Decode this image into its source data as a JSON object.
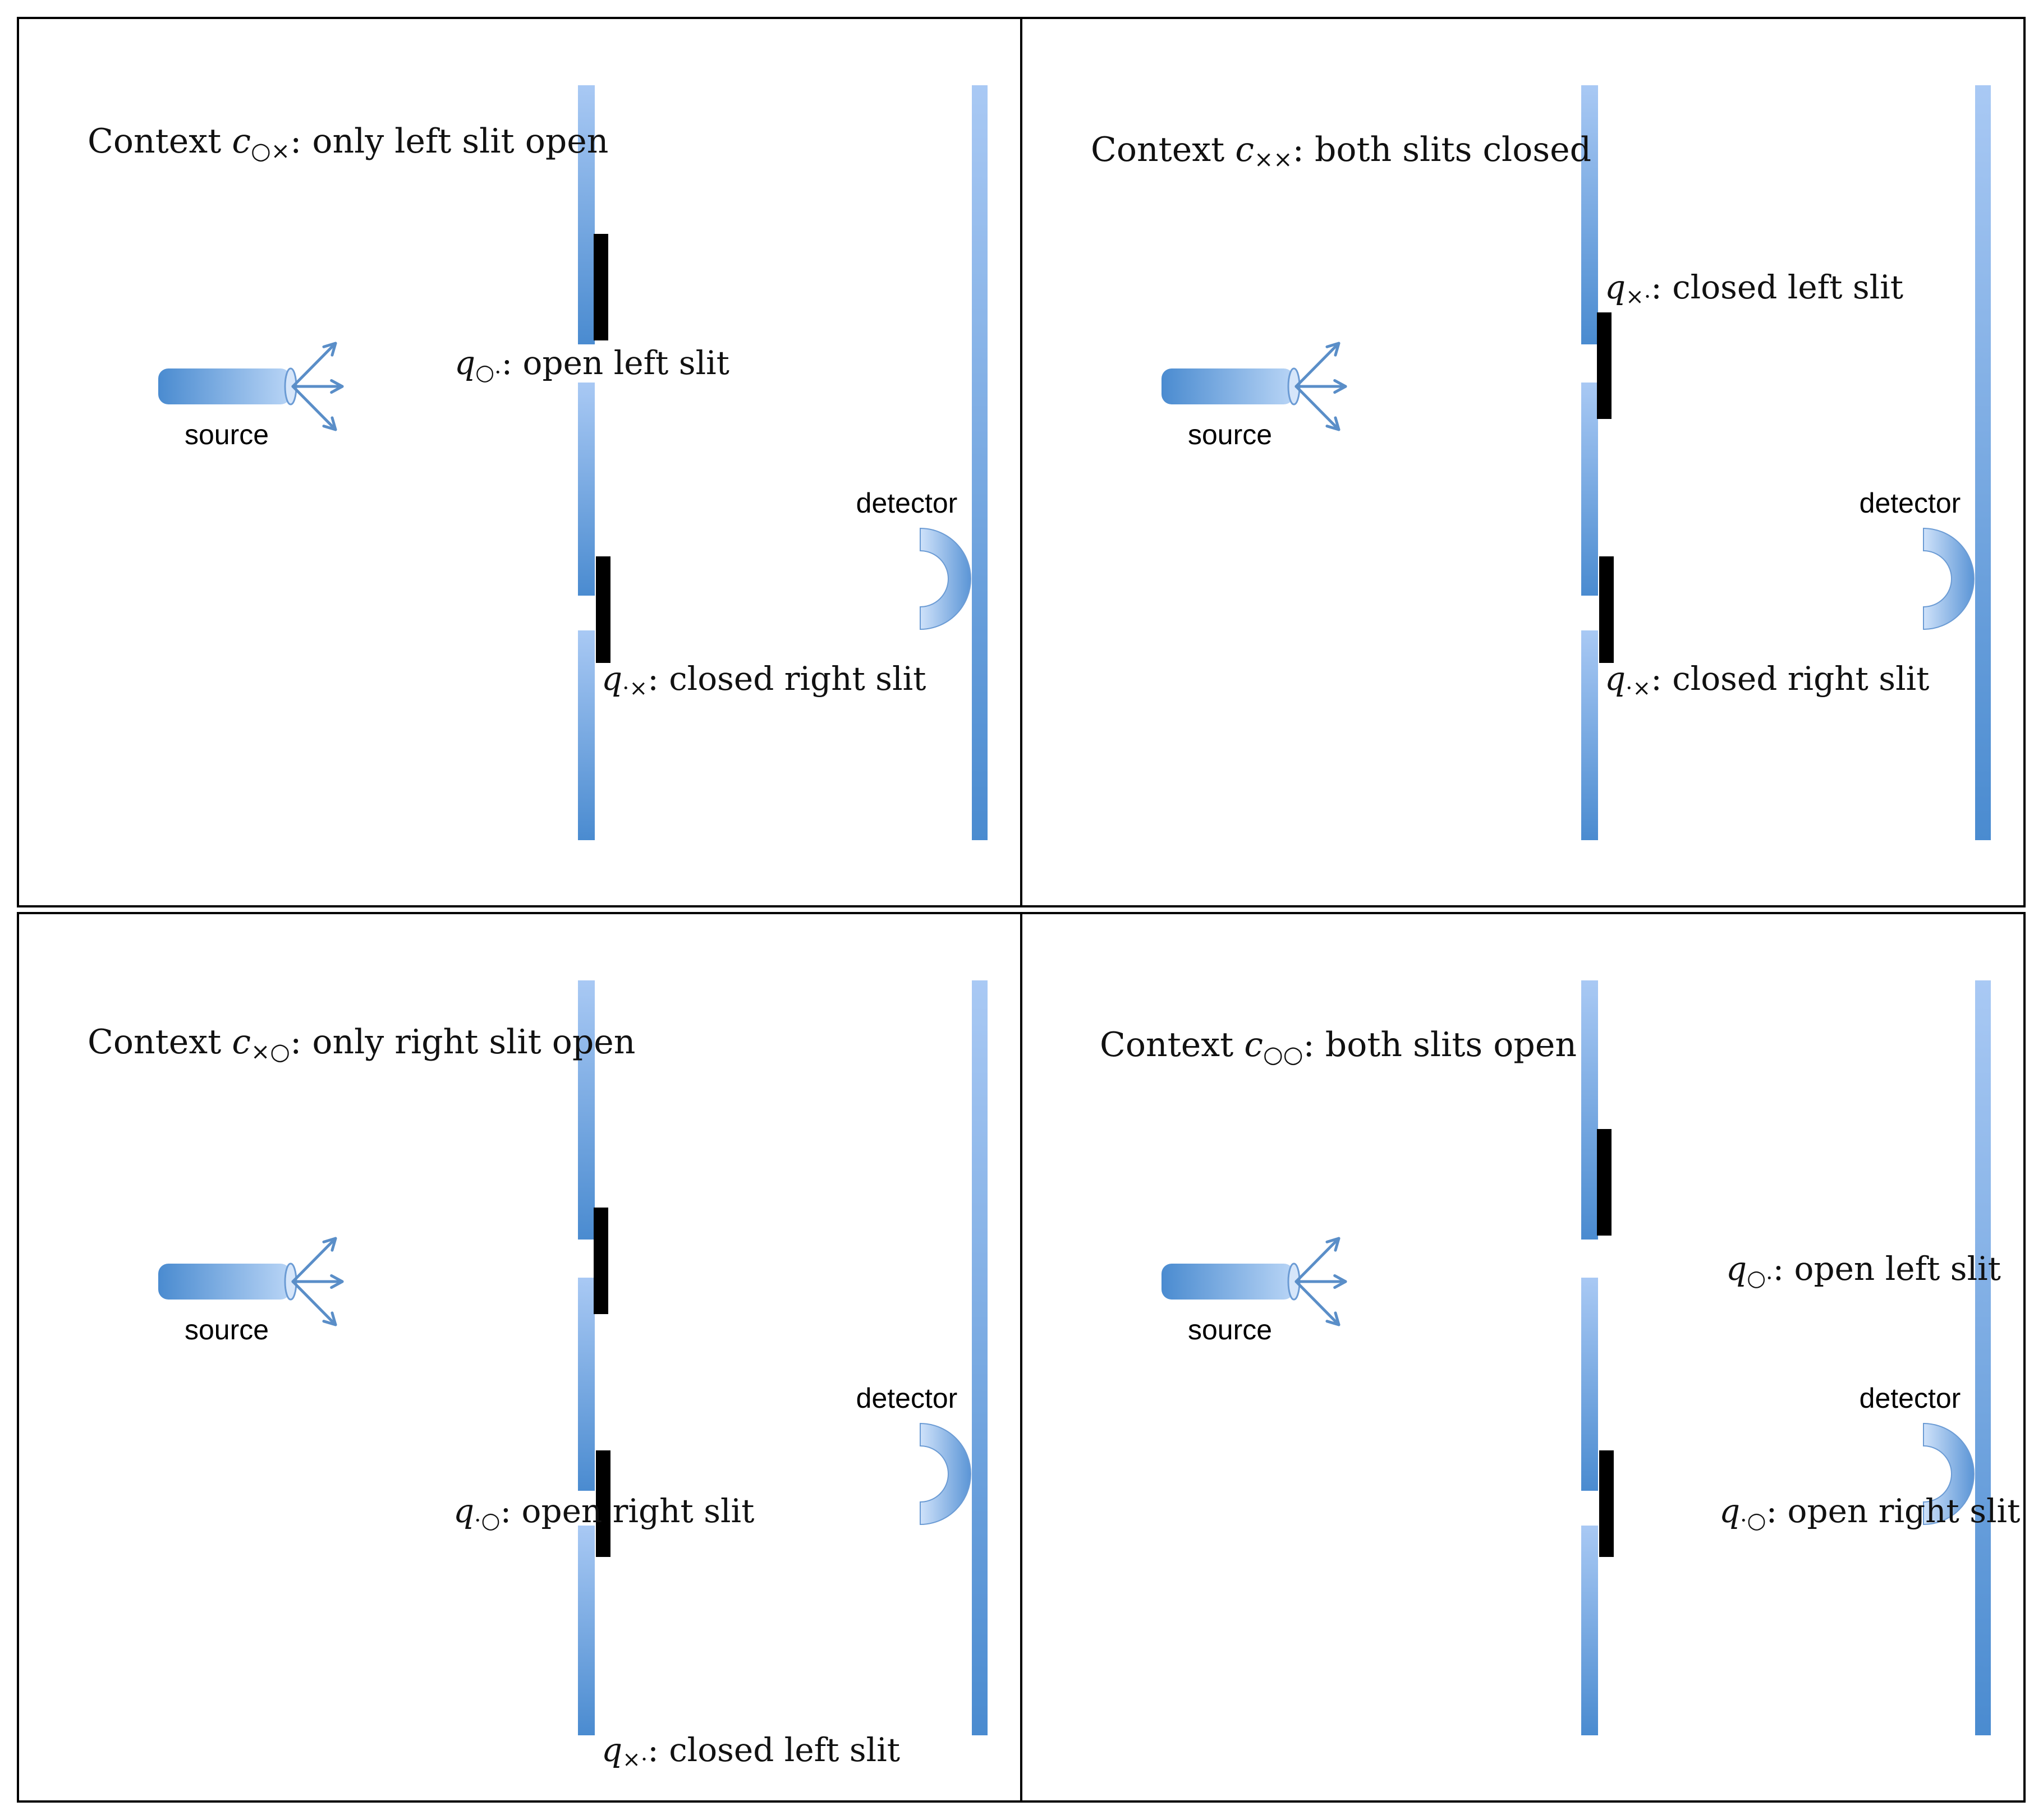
{
  "colors": {
    "frame": "#000000",
    "barrier_light": "#a9c9f4",
    "barrier_dark": "#4a8bd0",
    "shutter": "#000000",
    "arrow": "#5a8ec8"
  },
  "panels": [
    {
      "position": "top-left",
      "context": {
        "prefix": "Context",
        "symbol": "c",
        "subscript": "○×",
        "suffix": ": only left slit open"
      },
      "source_label": "source",
      "detector_label": "detector",
      "slit_labels": [
        {
          "symbol": "q",
          "subscript": "○·",
          "suffix": ": open left slit"
        },
        {
          "symbol": "q",
          "subscript": "·×",
          "suffix": ": closed right slit"
        }
      ],
      "left_slit": "open",
      "right_slit": "closed"
    },
    {
      "position": "top-right",
      "context": {
        "prefix": "Context",
        "symbol": "c",
        "subscript": "××",
        "suffix": ": both slits closed"
      },
      "source_label": "source",
      "detector_label": "detector",
      "slit_labels": [
        {
          "symbol": "q",
          "subscript": "×·",
          "suffix": ": closed left slit"
        },
        {
          "symbol": "q",
          "subscript": "·×",
          "suffix": ": closed right slit"
        }
      ],
      "left_slit": "closed",
      "right_slit": "closed"
    },
    {
      "position": "bottom-left",
      "context": {
        "prefix": "Context",
        "symbol": "c",
        "subscript": "×○",
        "suffix": ": only right slit open"
      },
      "source_label": "source",
      "detector_label": "detector",
      "slit_labels": [
        {
          "symbol": "q",
          "subscript": "×·",
          "suffix": ": closed left slit"
        },
        {
          "symbol": "q",
          "subscript": "·○",
          "suffix": ": open right slit"
        }
      ],
      "left_slit": "closed",
      "right_slit": "open"
    },
    {
      "position": "bottom-right",
      "context": {
        "prefix": "Context",
        "symbol": "c",
        "subscript": "○○",
        "suffix": ": both slits open"
      },
      "source_label": "source",
      "detector_label": "detector",
      "slit_labels": [
        {
          "symbol": "q",
          "subscript": "○·",
          "suffix": ": open left slit"
        },
        {
          "symbol": "q",
          "subscript": "·○",
          "suffix": ": open right slit"
        }
      ],
      "left_slit": "open",
      "right_slit": "open"
    }
  ]
}
